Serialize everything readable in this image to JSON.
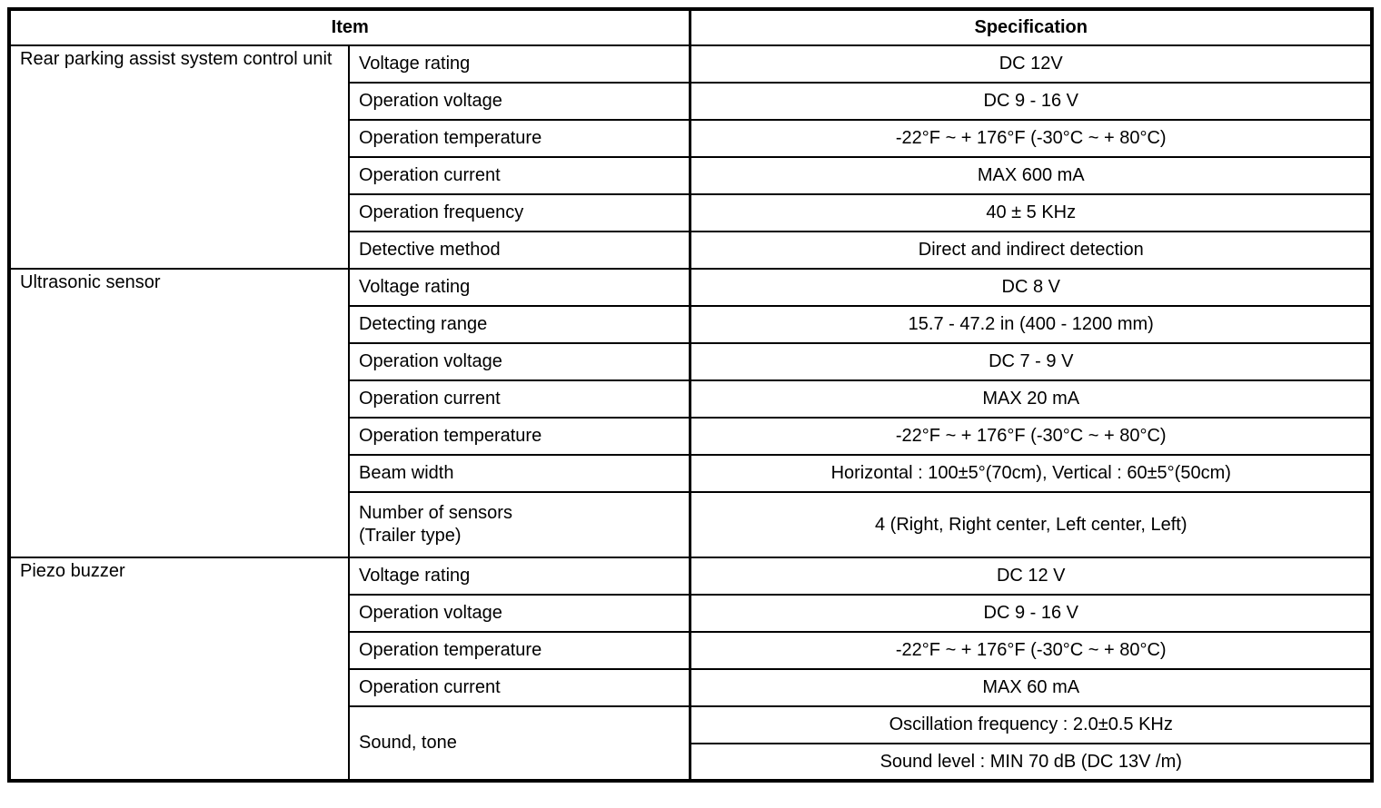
{
  "header": {
    "item": "Item",
    "specification": "Specification"
  },
  "table_colors": {
    "border": "#000000",
    "text": "#000000",
    "background": "#ffffff"
  },
  "sections": [
    {
      "group": "Rear parking assist system control unit",
      "rows": [
        {
          "label": "Voltage rating",
          "spec": "DC 12V"
        },
        {
          "label": "Operation voltage",
          "spec": "DC 9 - 16 V"
        },
        {
          "label": "Operation temperature",
          "spec": "-22°F ~ + 176°F (-30°C ~ + 80°C)"
        },
        {
          "label": "Operation current",
          "spec": "MAX 600 mA"
        },
        {
          "label": "Operation frequency",
          "spec": "40 ± 5 KHz"
        },
        {
          "label": "Detective method",
          "spec": "Direct and indirect detection"
        }
      ]
    },
    {
      "group": "Ultrasonic sensor",
      "rows": [
        {
          "label": "Voltage rating",
          "spec": "DC 8 V"
        },
        {
          "label": "Detecting range",
          "spec": "15.7 - 47.2 in (400 - 1200 mm)"
        },
        {
          "label": "Operation voltage",
          "spec": "DC 7 - 9 V"
        },
        {
          "label": "Operation current",
          "spec": "MAX 20 mA"
        },
        {
          "label": "Operation temperature",
          "spec": "-22°F ~ + 176°F (-30°C ~ + 80°C)"
        },
        {
          "label": "Beam width",
          "spec": "Horizontal : 100±5°(70cm), Vertical : 60±5°(50cm)"
        },
        {
          "label": "Number of sensors\n(Trailer type)",
          "spec": "4 (Right, Right center, Left center, Left)"
        }
      ]
    },
    {
      "group": "Piezo buzzer",
      "rows": [
        {
          "label": "Voltage rating",
          "spec": "DC 12 V"
        },
        {
          "label": "Operation voltage",
          "spec": "DC 9 - 16 V"
        },
        {
          "label": "Operation temperature",
          "spec": "-22°F ~ + 176°F (-30°C ~ + 80°C)"
        },
        {
          "label": "Operation current",
          "spec": "MAX 60 mA"
        },
        {
          "label": "Sound, tone",
          "spec_lines": [
            "Oscillation frequency : 2.0±0.5 KHz",
            "Sound level : MIN 70 dB (DC 13V /m)"
          ]
        }
      ]
    }
  ]
}
